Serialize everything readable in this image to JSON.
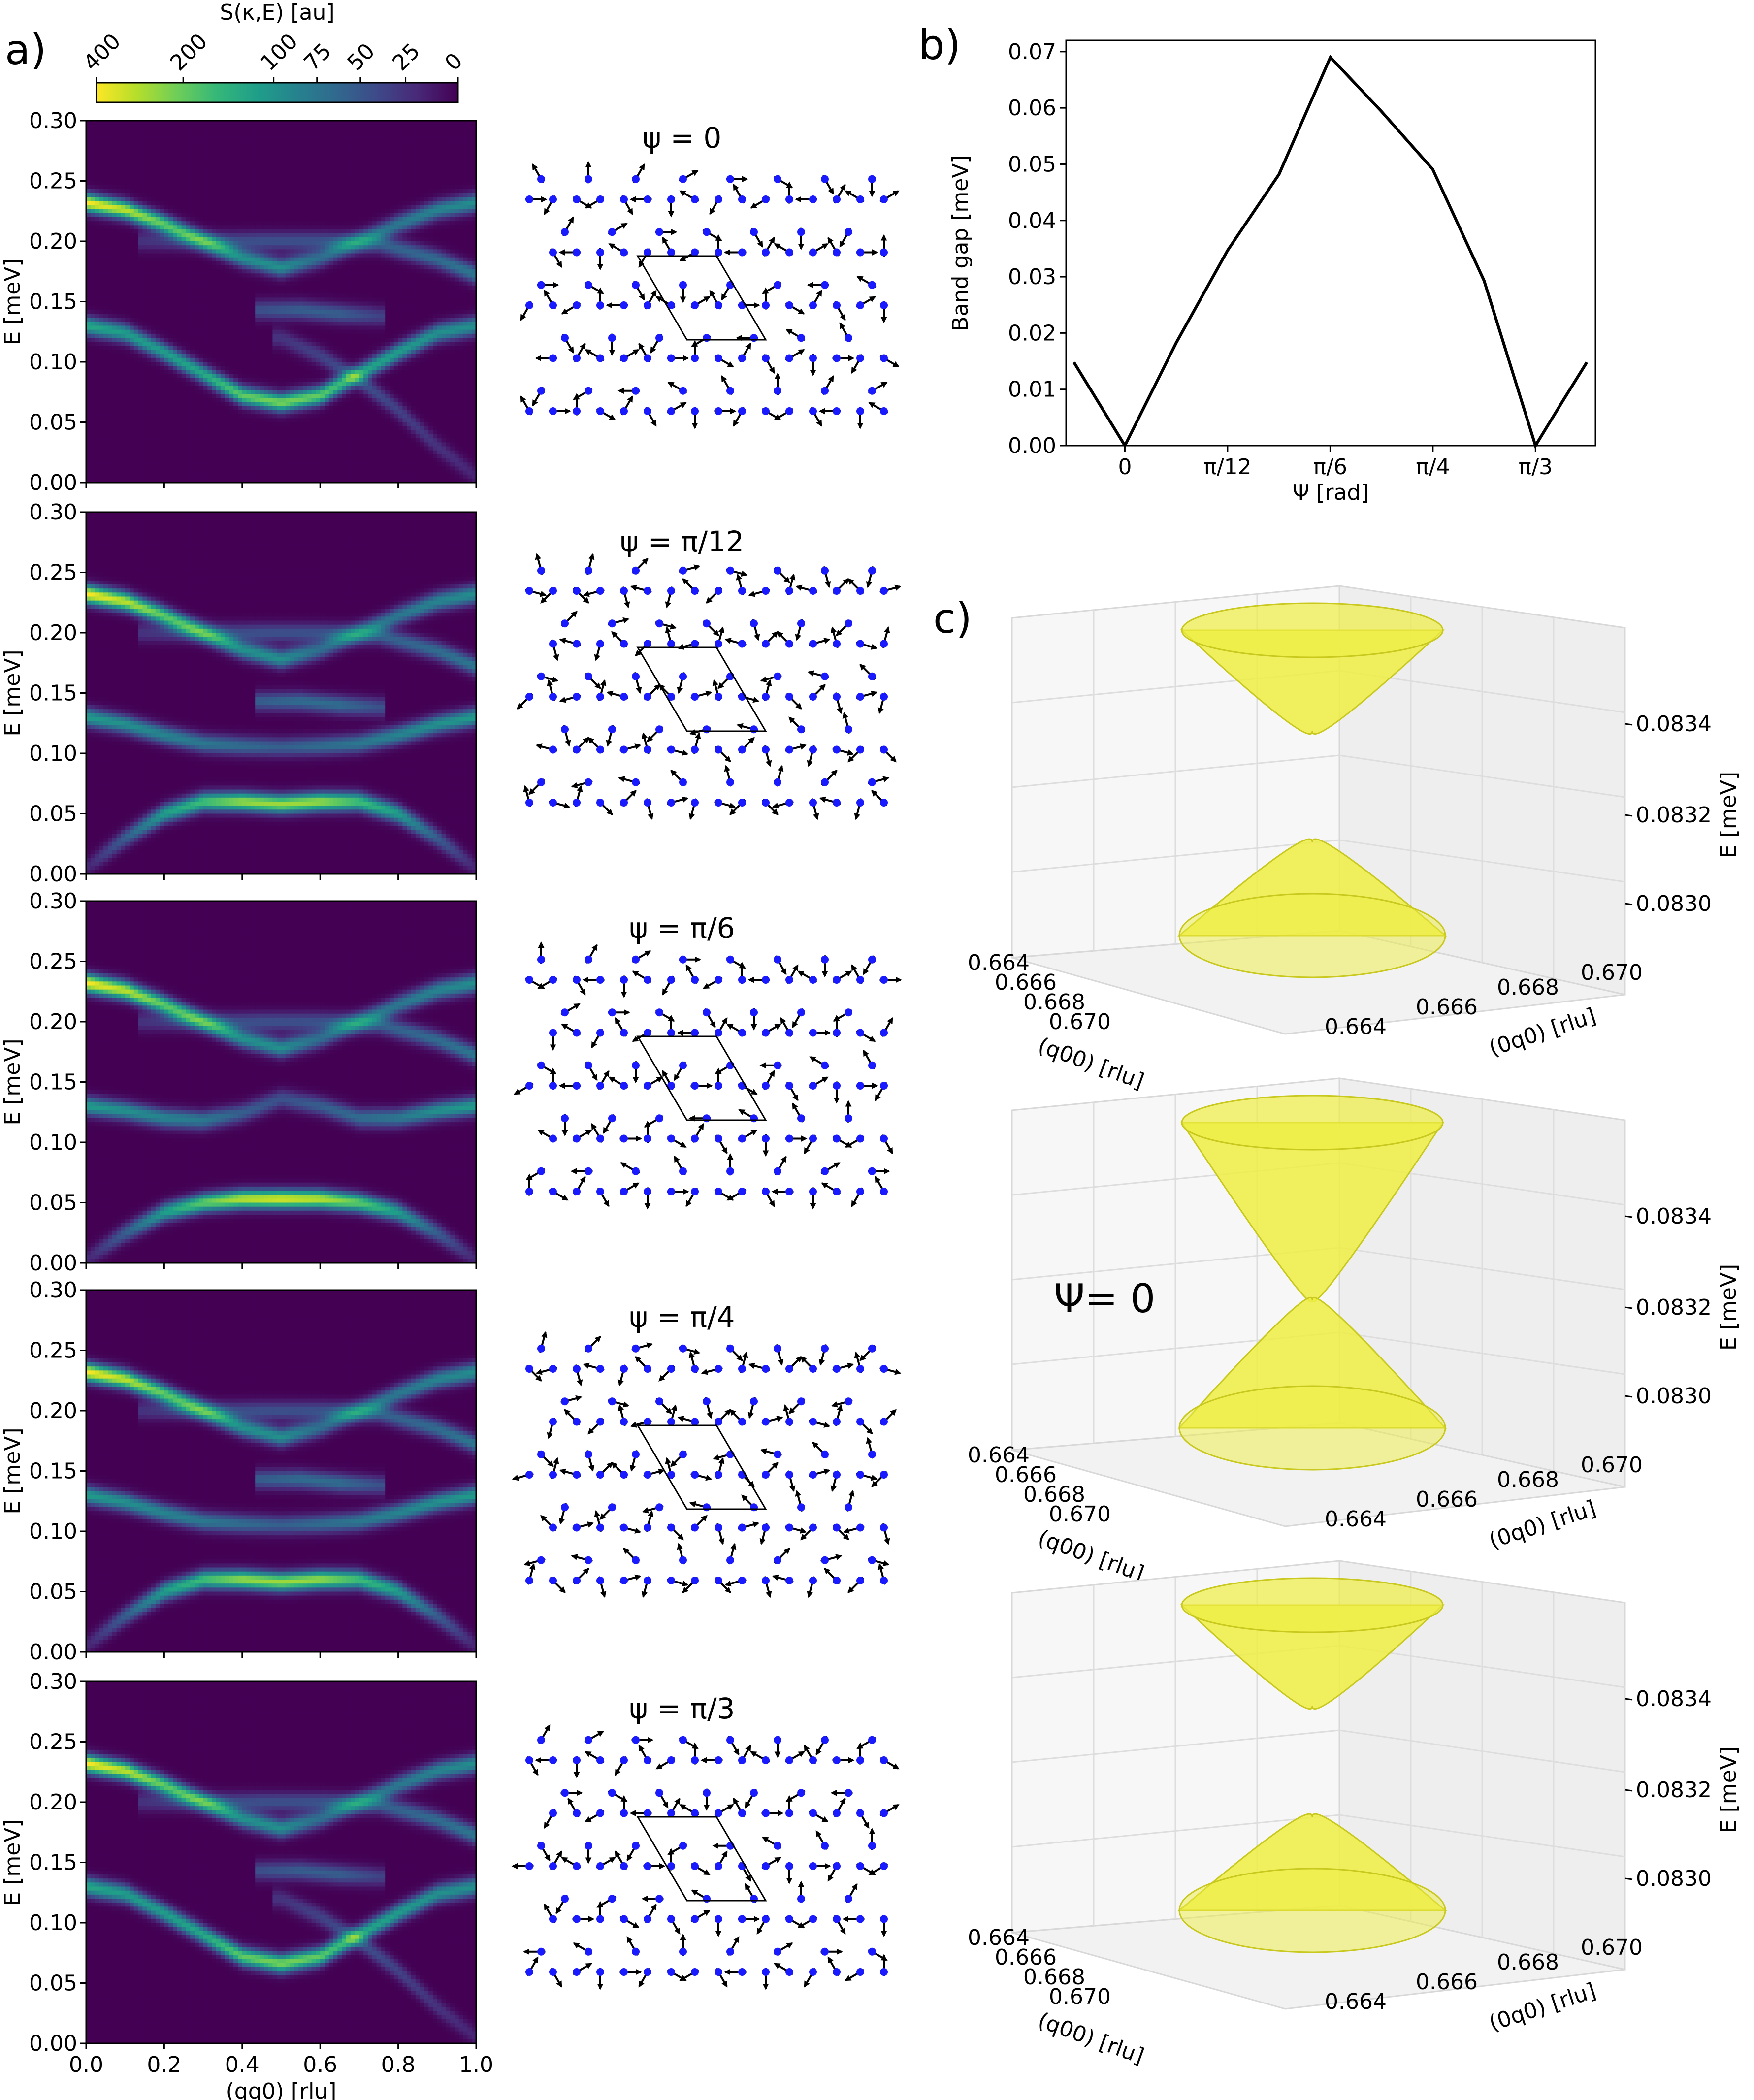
{
  "panel_letters": [
    "a)",
    "b)",
    "c)"
  ],
  "colorbar": {
    "label": "S(κ,E) [au]",
    "ticks": [
      "400",
      "200",
      "100",
      "75",
      "50",
      "25",
      "0"
    ],
    "colormap": [
      "#fde725",
      "#b5de2b",
      "#6ece58",
      "#35b779",
      "#1f9e89",
      "#26828e",
      "#31688e",
      "#3e4989",
      "#482878",
      "#440154"
    ]
  },
  "accent_colors": {
    "spin_site": "#1a1aff",
    "spin_arrow": "#000000",
    "cone_fill": "#eeee44",
    "cone_edge": "#c8c81e"
  },
  "chart_data": [
    {
      "type": "heatmap",
      "panel": "a",
      "title": "ψ = 0",
      "xlabel": "",
      "ylabel": "E [meV]",
      "xlim": [
        0.0,
        1.0
      ],
      "ylim": [
        0.0,
        0.3
      ],
      "yticks": [
        "0.00",
        "0.05",
        "0.10",
        "0.15",
        "0.20",
        "0.25",
        "0.30"
      ],
      "bands": [
        {
          "x": [
            0,
            0.1,
            0.2,
            0.3,
            0.4,
            0.5,
            0.6,
            0.7,
            0.8,
            0.9,
            1.0
          ],
          "E": [
            0.232,
            0.226,
            0.214,
            0.2,
            0.186,
            0.178,
            0.186,
            0.2,
            0.214,
            0.226,
            0.232
          ],
          "intensity": [
            1.0,
            0.9,
            0.75,
            0.6,
            0.5,
            0.5,
            0.35,
            0.35,
            0.4,
            0.45,
            0.5
          ]
        },
        {
          "x": [
            0,
            0.1,
            0.2,
            0.3,
            0.4,
            0.5,
            0.6,
            0.7,
            0.8,
            0.9,
            1.0
          ],
          "E": [
            0.13,
            0.124,
            0.108,
            0.09,
            0.072,
            0.066,
            0.072,
            0.09,
            0.108,
            0.124,
            0.13
          ],
          "intensity": [
            0.6,
            0.55,
            0.55,
            0.6,
            0.75,
            0.8,
            0.75,
            0.6,
            0.55,
            0.5,
            0.5
          ]
        },
        {
          "x": [
            0.15,
            0.3,
            0.45,
            0.6,
            0.75,
            0.9,
            1.0
          ],
          "E": [
            0.2,
            0.2,
            0.2,
            0.2,
            0.198,
            0.185,
            0.172
          ],
          "intensity": [
            0.15,
            0.2,
            0.25,
            0.25,
            0.3,
            0.35,
            0.4
          ]
        },
        {
          "x": [
            0.45,
            0.55,
            0.65,
            0.75
          ],
          "E": [
            0.143,
            0.143,
            0.14,
            0.138
          ],
          "intensity": [
            0.25,
            0.3,
            0.3,
            0.2
          ]
        },
        {
          "x": [
            0.5,
            0.6,
            0.7,
            0.8,
            0.9,
            1.0
          ],
          "E": [
            0.12,
            0.105,
            0.085,
            0.06,
            0.03,
            0.005
          ],
          "intensity": [
            0.15,
            0.2,
            0.25,
            0.2,
            0.15,
            0.1
          ]
        }
      ]
    },
    {
      "type": "heatmap",
      "panel": "a",
      "title": "ψ = π/12",
      "xlabel": "",
      "ylabel": "E [meV]",
      "xlim": [
        0.0,
        1.0
      ],
      "ylim": [
        0.0,
        0.3
      ],
      "yticks": [
        "0.00",
        "0.05",
        "0.10",
        "0.15",
        "0.20",
        "0.25",
        "0.30"
      ],
      "bands": [
        {
          "x": [
            0,
            0.1,
            0.2,
            0.3,
            0.4,
            0.5,
            0.6,
            0.7,
            0.8,
            0.9,
            1.0
          ],
          "E": [
            0.232,
            0.226,
            0.214,
            0.2,
            0.186,
            0.178,
            0.186,
            0.2,
            0.214,
            0.226,
            0.232
          ],
          "intensity": [
            1.0,
            0.9,
            0.75,
            0.6,
            0.5,
            0.5,
            0.35,
            0.35,
            0.4,
            0.45,
            0.5
          ]
        },
        {
          "x": [
            0,
            0.1,
            0.2,
            0.3,
            0.4,
            0.5,
            0.6,
            0.7,
            0.8,
            0.9,
            1.0
          ],
          "E": [
            0.13,
            0.124,
            0.115,
            0.108,
            0.106,
            0.105,
            0.106,
            0.108,
            0.115,
            0.124,
            0.13
          ],
          "intensity": [
            0.55,
            0.5,
            0.45,
            0.4,
            0.35,
            0.3,
            0.35,
            0.4,
            0.45,
            0.5,
            0.55
          ]
        },
        {
          "x": [
            0,
            0.1,
            0.2,
            0.3,
            0.4,
            0.5,
            0.6,
            0.7,
            0.8,
            0.9,
            1.0
          ],
          "E": [
            0.005,
            0.03,
            0.05,
            0.06,
            0.06,
            0.058,
            0.06,
            0.06,
            0.05,
            0.03,
            0.005
          ],
          "intensity": [
            0.1,
            0.3,
            0.55,
            0.7,
            0.85,
            0.85,
            0.85,
            0.7,
            0.55,
            0.3,
            0.1
          ]
        },
        {
          "x": [
            0.15,
            0.3,
            0.45,
            0.6,
            0.75,
            0.9,
            1.0
          ],
          "E": [
            0.2,
            0.2,
            0.2,
            0.2,
            0.198,
            0.185,
            0.172
          ],
          "intensity": [
            0.15,
            0.2,
            0.25,
            0.25,
            0.3,
            0.35,
            0.4
          ]
        },
        {
          "x": [
            0.45,
            0.55,
            0.65,
            0.75
          ],
          "E": [
            0.143,
            0.143,
            0.14,
            0.138
          ],
          "intensity": [
            0.3,
            0.35,
            0.35,
            0.25
          ]
        }
      ]
    },
    {
      "type": "heatmap",
      "panel": "a",
      "title": "ψ = π/6",
      "xlabel": "",
      "ylabel": "E [meV]",
      "xlim": [
        0.0,
        1.0
      ],
      "ylim": [
        0.0,
        0.3
      ],
      "yticks": [
        "0.00",
        "0.05",
        "0.10",
        "0.15",
        "0.20",
        "0.25",
        "0.30"
      ],
      "bands": [
        {
          "x": [
            0,
            0.1,
            0.2,
            0.3,
            0.4,
            0.5,
            0.6,
            0.7,
            0.8,
            0.9,
            1.0
          ],
          "E": [
            0.232,
            0.226,
            0.214,
            0.2,
            0.186,
            0.178,
            0.186,
            0.2,
            0.214,
            0.226,
            0.232
          ],
          "intensity": [
            1.0,
            0.9,
            0.75,
            0.6,
            0.5,
            0.5,
            0.35,
            0.35,
            0.4,
            0.45,
            0.5
          ]
        },
        {
          "x": [
            0,
            0.1,
            0.2,
            0.3,
            0.4,
            0.5,
            0.6,
            0.7,
            0.8,
            0.9,
            1.0
          ],
          "E": [
            0.13,
            0.126,
            0.12,
            0.118,
            0.124,
            0.136,
            0.13,
            0.12,
            0.12,
            0.126,
            0.13
          ],
          "intensity": [
            0.55,
            0.5,
            0.45,
            0.4,
            0.3,
            0.25,
            0.3,
            0.35,
            0.4,
            0.5,
            0.55
          ]
        },
        {
          "x": [
            0,
            0.1,
            0.2,
            0.3,
            0.4,
            0.5,
            0.6,
            0.7,
            0.8,
            0.9,
            1.0
          ],
          "E": [
            0.003,
            0.025,
            0.042,
            0.05,
            0.053,
            0.053,
            0.053,
            0.05,
            0.042,
            0.025,
            0.003
          ],
          "intensity": [
            0.1,
            0.3,
            0.55,
            0.75,
            0.9,
            0.95,
            0.9,
            0.75,
            0.55,
            0.3,
            0.1
          ]
        },
        {
          "x": [
            0.15,
            0.3,
            0.45,
            0.6,
            0.75,
            0.9,
            1.0
          ],
          "E": [
            0.2,
            0.2,
            0.2,
            0.2,
            0.198,
            0.185,
            0.172
          ],
          "intensity": [
            0.15,
            0.2,
            0.25,
            0.25,
            0.3,
            0.35,
            0.4
          ]
        }
      ]
    },
    {
      "type": "heatmap",
      "panel": "a",
      "title": "ψ = π/4",
      "xlabel": "",
      "ylabel": "E [meV]",
      "xlim": [
        0.0,
        1.0
      ],
      "ylim": [
        0.0,
        0.3
      ],
      "yticks": [
        "0.00",
        "0.05",
        "0.10",
        "0.15",
        "0.20",
        "0.25",
        "0.30"
      ],
      "bands": [
        {
          "x": [
            0,
            0.1,
            0.2,
            0.3,
            0.4,
            0.5,
            0.6,
            0.7,
            0.8,
            0.9,
            1.0
          ],
          "E": [
            0.232,
            0.226,
            0.214,
            0.2,
            0.186,
            0.178,
            0.186,
            0.2,
            0.214,
            0.226,
            0.232
          ],
          "intensity": [
            1.0,
            0.9,
            0.75,
            0.6,
            0.5,
            0.5,
            0.35,
            0.35,
            0.4,
            0.45,
            0.5
          ]
        },
        {
          "x": [
            0,
            0.1,
            0.2,
            0.3,
            0.4,
            0.5,
            0.6,
            0.7,
            0.8,
            0.9,
            1.0
          ],
          "E": [
            0.13,
            0.124,
            0.115,
            0.108,
            0.106,
            0.105,
            0.106,
            0.108,
            0.115,
            0.124,
            0.13
          ],
          "intensity": [
            0.55,
            0.5,
            0.45,
            0.4,
            0.35,
            0.3,
            0.35,
            0.4,
            0.45,
            0.5,
            0.55
          ]
        },
        {
          "x": [
            0,
            0.1,
            0.2,
            0.3,
            0.4,
            0.5,
            0.6,
            0.7,
            0.8,
            0.9,
            1.0
          ],
          "E": [
            0.005,
            0.03,
            0.05,
            0.06,
            0.06,
            0.058,
            0.06,
            0.06,
            0.05,
            0.03,
            0.005
          ],
          "intensity": [
            0.1,
            0.3,
            0.55,
            0.7,
            0.85,
            0.85,
            0.85,
            0.7,
            0.55,
            0.3,
            0.1
          ]
        },
        {
          "x": [
            0.15,
            0.3,
            0.45,
            0.6,
            0.75,
            0.9,
            1.0
          ],
          "E": [
            0.2,
            0.2,
            0.2,
            0.2,
            0.198,
            0.185,
            0.172
          ],
          "intensity": [
            0.15,
            0.2,
            0.25,
            0.25,
            0.3,
            0.35,
            0.4
          ]
        },
        {
          "x": [
            0.45,
            0.55,
            0.65,
            0.75
          ],
          "E": [
            0.143,
            0.143,
            0.14,
            0.138
          ],
          "intensity": [
            0.3,
            0.35,
            0.35,
            0.25
          ]
        }
      ]
    },
    {
      "type": "heatmap",
      "panel": "a",
      "title": "ψ = π/3",
      "xlabel": "(qq0) [rlu]",
      "ylabel": "E [meV]",
      "xlim": [
        0.0,
        1.0
      ],
      "ylim": [
        0.0,
        0.3
      ],
      "xticks": [
        "0.0",
        "0.2",
        "0.4",
        "0.6",
        "0.8",
        "1.0"
      ],
      "yticks": [
        "0.00",
        "0.05",
        "0.10",
        "0.15",
        "0.20",
        "0.25",
        "0.30"
      ],
      "bands": [
        {
          "x": [
            0,
            0.1,
            0.2,
            0.3,
            0.4,
            0.5,
            0.6,
            0.7,
            0.8,
            0.9,
            1.0
          ],
          "E": [
            0.232,
            0.226,
            0.214,
            0.2,
            0.186,
            0.178,
            0.186,
            0.2,
            0.214,
            0.226,
            0.232
          ],
          "intensity": [
            1.0,
            0.9,
            0.75,
            0.6,
            0.5,
            0.5,
            0.35,
            0.35,
            0.4,
            0.45,
            0.5
          ]
        },
        {
          "x": [
            0,
            0.1,
            0.2,
            0.3,
            0.4,
            0.5,
            0.6,
            0.7,
            0.8,
            0.9,
            1.0
          ],
          "E": [
            0.13,
            0.124,
            0.108,
            0.09,
            0.072,
            0.066,
            0.072,
            0.09,
            0.108,
            0.124,
            0.13
          ],
          "intensity": [
            0.6,
            0.55,
            0.55,
            0.6,
            0.75,
            0.8,
            0.75,
            0.6,
            0.55,
            0.5,
            0.5
          ]
        },
        {
          "x": [
            0.15,
            0.3,
            0.45,
            0.6,
            0.75,
            0.9,
            1.0
          ],
          "E": [
            0.2,
            0.2,
            0.2,
            0.2,
            0.198,
            0.185,
            0.172
          ],
          "intensity": [
            0.15,
            0.2,
            0.25,
            0.25,
            0.3,
            0.35,
            0.4
          ]
        },
        {
          "x": [
            0.45,
            0.55,
            0.65,
            0.75
          ],
          "E": [
            0.143,
            0.143,
            0.14,
            0.138
          ],
          "intensity": [
            0.25,
            0.3,
            0.3,
            0.2
          ]
        },
        {
          "x": [
            0.5,
            0.6,
            0.7,
            0.8,
            0.9,
            1.0
          ],
          "E": [
            0.12,
            0.105,
            0.085,
            0.06,
            0.03,
            0.005
          ],
          "intensity": [
            0.15,
            0.2,
            0.25,
            0.2,
            0.15,
            0.1
          ]
        }
      ]
    },
    {
      "type": "line",
      "panel": "b",
      "xlabel": "Ψ [rad]",
      "ylabel": "Band gap [meV]",
      "xlim": [
        -0.15,
        1.2
      ],
      "ylim": [
        0.0,
        0.072
      ],
      "xticks": [
        {
          "value": 0.0,
          "label": "0"
        },
        {
          "value": 0.2618,
          "label": "π/12"
        },
        {
          "value": 0.5236,
          "label": "π/6"
        },
        {
          "value": 0.7854,
          "label": "π/4"
        },
        {
          "value": 1.0472,
          "label": "π/3"
        }
      ],
      "yticks": [
        "0.00",
        "0.01",
        "0.02",
        "0.03",
        "0.04",
        "0.05",
        "0.06",
        "0.07"
      ],
      "x": [
        -0.13,
        -0.065,
        0.0,
        0.131,
        0.262,
        0.393,
        0.524,
        0.654,
        0.785,
        0.916,
        1.047,
        1.112,
        1.178
      ],
      "y": [
        0.0148,
        0.0074,
        0.0,
        0.0183,
        0.0347,
        0.0482,
        0.069,
        0.0594,
        0.0491,
        0.0293,
        0.0,
        0.0074,
        0.0148
      ]
    },
    {
      "type": "surface",
      "panel": "c",
      "annotation": "",
      "xlabel": "(q00) [rlu]",
      "ylabel": "(0q0) [rlu]",
      "zlabel": "E [meV]",
      "xticks": [
        "0.664",
        "0.666",
        "0.668",
        "0.670"
      ],
      "yticks": [
        "0.664",
        "0.666",
        "0.668",
        "0.670"
      ],
      "zticks": [
        "0.0830",
        "0.0832",
        "0.0834"
      ],
      "upper_cone_min_E": 0.0835,
      "lower_cone_max_E": 0.0831
    },
    {
      "type": "surface",
      "panel": "c",
      "annotation": "Ψ= 0",
      "xlabel": "(q00) [rlu]",
      "ylabel": "(0q0) [rlu]",
      "zlabel": "E [meV]",
      "xticks": [
        "0.664",
        "0.666",
        "0.668",
        "0.670"
      ],
      "yticks": [
        "0.664",
        "0.666",
        "0.668",
        "0.670"
      ],
      "zticks": [
        "0.0830",
        "0.0832",
        "0.0834"
      ],
      "upper_cone_min_E": 0.0833,
      "lower_cone_max_E": 0.0833
    },
    {
      "type": "surface",
      "panel": "c",
      "annotation": "",
      "xlabel": "(q00) [rlu]",
      "ylabel": "(0q0) [rlu]",
      "zlabel": "E [meV]",
      "xticks": [
        "0.664",
        "0.666",
        "0.668",
        "0.670"
      ],
      "yticks": [
        "0.664",
        "0.666",
        "0.668",
        "0.670"
      ],
      "zticks": [
        "0.0830",
        "0.0832",
        "0.0834"
      ],
      "upper_cone_min_E": 0.0835,
      "lower_cone_max_E": 0.0831
    }
  ],
  "spin_diagrams": [
    {
      "title": "ψ = 0",
      "angle_deg": 0
    },
    {
      "title": "ψ = π/12",
      "angle_deg": 15
    },
    {
      "title": "ψ = π/6",
      "angle_deg": 30
    },
    {
      "title": "ψ = π/4",
      "angle_deg": 45
    },
    {
      "title": "ψ = π/3",
      "angle_deg": 60
    }
  ]
}
